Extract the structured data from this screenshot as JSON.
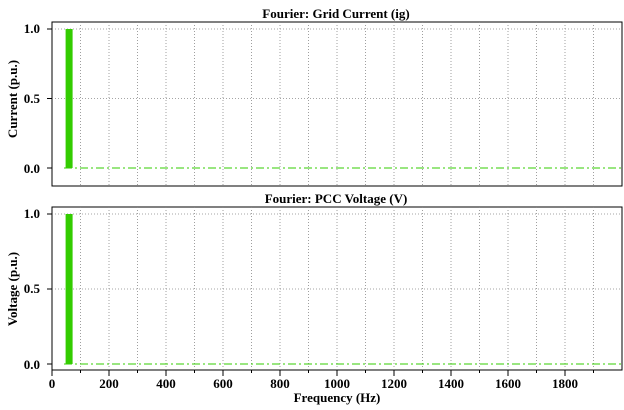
{
  "chart_data": [
    {
      "type": "bar",
      "title": "Fourier: Grid Current (ig)",
      "ylabel": "Current (p.u.)",
      "xlabel": "",
      "xlim": [
        0,
        2000
      ],
      "ylim": [
        0,
        1.0
      ],
      "yticks": [
        "0.0",
        "0.5",
        "1.0"
      ],
      "grid": true,
      "bar_color": "#33cc00",
      "series": [
        {
          "x": [
            60
          ],
          "values": [
            1.0
          ]
        }
      ],
      "baseline_values": [
        0.0
      ]
    },
    {
      "type": "bar",
      "title": "Fourier: PCC Voltage (V)",
      "ylabel": "Voltage (p.u.)",
      "xlabel": "Frequency (Hz)",
      "xlim": [
        0,
        2000
      ],
      "ylim": [
        0,
        1.0
      ],
      "yticks": [
        "0.0",
        "0.5",
        "1.0"
      ],
      "xticks": [
        "0",
        "200",
        "400",
        "600",
        "800",
        "1000",
        "1200",
        "1400",
        "1600",
        "1800"
      ],
      "grid": true,
      "bar_color": "#33cc00",
      "series": [
        {
          "x": [
            60
          ],
          "values": [
            1.0
          ]
        }
      ],
      "baseline_values": [
        0.0
      ]
    }
  ]
}
